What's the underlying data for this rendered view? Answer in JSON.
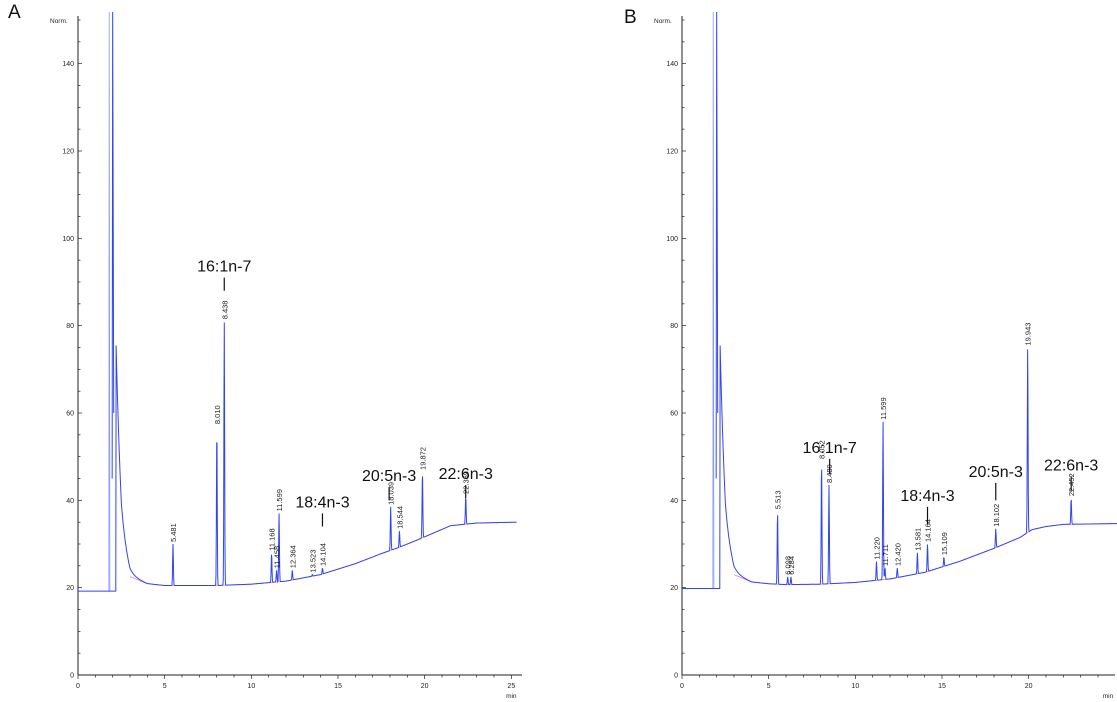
{
  "colors": {
    "trace": "#3344ee",
    "baseline": "#e060d0",
    "axis": "#222222"
  },
  "chart_data": [
    {
      "type": "line",
      "panel": "A",
      "ylabel": "Norm.",
      "xunit": "min",
      "xlim": [
        0,
        25.5
      ],
      "ylim": [
        0,
        150
      ],
      "xticks": [
        0,
        5,
        10,
        15,
        20,
        25
      ],
      "yticks": [
        0,
        20,
        40,
        60,
        80,
        100,
        120,
        140
      ],
      "baseline_start": 19.2,
      "solvent_peak_rt": 2.0,
      "baseline_points": [
        [
          0,
          19.2
        ],
        [
          1.75,
          19.2
        ],
        [
          2.2,
          42
        ],
        [
          2.5,
          28
        ],
        [
          3,
          22.5
        ],
        [
          4,
          20.9
        ],
        [
          5,
          20.5
        ],
        [
          6,
          20.5
        ],
        [
          8,
          20.5
        ],
        [
          10,
          20.8
        ],
        [
          12,
          21.5
        ],
        [
          14,
          23
        ],
        [
          16,
          25.5
        ],
        [
          17.5,
          27.8
        ],
        [
          18.5,
          29.2
        ],
        [
          19.5,
          30.8
        ],
        [
          20.5,
          32.5
        ],
        [
          21.5,
          34.2
        ],
        [
          23,
          34.8
        ],
        [
          25.3,
          35
        ]
      ],
      "peaks": [
        {
          "rt": 5.481,
          "label": "5.481",
          "height": 30
        },
        {
          "rt": 8.01,
          "label": "8.010",
          "height": 57
        },
        {
          "rt": 8.438,
          "label": "8.438",
          "height": 81
        },
        {
          "rt": 11.168,
          "label": "11.168",
          "height": 28
        },
        {
          "rt": 11.458,
          "label": "11.458",
          "height": 24
        },
        {
          "rt": 11.599,
          "label": "11.599",
          "height": 37
        },
        {
          "rt": 12.364,
          "label": "12.364",
          "height": 24
        },
        {
          "rt": 13.523,
          "label": "13.523",
          "height": 23
        },
        {
          "rt": 14.104,
          "label": "14.104",
          "height": 24.5
        },
        {
          "rt": 18.039,
          "label": "18.039",
          "height": 38.5
        },
        {
          "rt": 18.544,
          "label": "18.544",
          "height": 33
        },
        {
          "rt": 19.872,
          "label": "19.872",
          "height": 46.5
        },
        {
          "rt": 22.369,
          "label": "22.369",
          "height": 41
        }
      ],
      "annotations": [
        {
          "text": "16:1n-7",
          "rt": 8.438,
          "tick_top": 91,
          "tick_bottom": 88
        },
        {
          "text": "18:4n-3",
          "rt": 14.104,
          "tick_top": 37,
          "tick_bottom": 34
        },
        {
          "text": "20:5n-3",
          "rt": 17.95,
          "tick_top": 43,
          "tick_bottom": 40
        },
        {
          "text": "22:6n-3",
          "rt": 22.369,
          "tick_top": 43.5,
          "tick_bottom": 40.5
        }
      ]
    },
    {
      "type": "line",
      "panel": "B",
      "ylabel": "Norm.",
      "xunit": "min",
      "xlim": [
        0,
        25.5
      ],
      "ylim": [
        0,
        150
      ],
      "xticks": [
        0,
        5,
        10,
        15,
        20,
        25
      ],
      "yticks": [
        0,
        20,
        40,
        60,
        80,
        100,
        120,
        140
      ],
      "baseline_start": 19.8,
      "solvent_peak_rt": 2.0,
      "baseline_points": [
        [
          0,
          19.8
        ],
        [
          1.75,
          19.8
        ],
        [
          2.2,
          42
        ],
        [
          2.5,
          28
        ],
        [
          3,
          23
        ],
        [
          4,
          21.3
        ],
        [
          5,
          20.9
        ],
        [
          6,
          20.7
        ],
        [
          8,
          20.8
        ],
        [
          10,
          21.2
        ],
        [
          12,
          22
        ],
        [
          14,
          23.5
        ],
        [
          16,
          26
        ],
        [
          18,
          29
        ],
        [
          19.5,
          31.5
        ],
        [
          20.2,
          33.3
        ],
        [
          21,
          34
        ],
        [
          22,
          34.5
        ],
        [
          25.5,
          34.7
        ]
      ],
      "peaks": [
        {
          "rt": 5.513,
          "label": "5.513",
          "height": 37.5
        },
        {
          "rt": 6.098,
          "label": "6.098",
          "height": 22.5
        },
        {
          "rt": 6.284,
          "label": "6.284",
          "height": 22.5
        },
        {
          "rt": 8.052,
          "label": "8.052",
          "height": 49
        },
        {
          "rt": 8.48,
          "label": "8.480",
          "height": 43.5
        },
        {
          "rt": 11.22,
          "label": "11.220",
          "height": 26
        },
        {
          "rt": 11.599,
          "label": "11.599",
          "height": 58
        },
        {
          "rt": 11.711,
          "label": "11.711",
          "height": 24.5
        },
        {
          "rt": 12.42,
          "label": "12.420",
          "height": 24.5
        },
        {
          "rt": 13.581,
          "label": "13.581",
          "height": 28
        },
        {
          "rt": 14.164,
          "label": "14.164",
          "height": 30
        },
        {
          "rt": 15.109,
          "label": "15.109",
          "height": 27
        },
        {
          "rt": 18.102,
          "label": "18.102",
          "height": 33.5
        },
        {
          "rt": 19.943,
          "label": "19.943",
          "height": 75
        },
        {
          "rt": 22.452,
          "label": "22.452",
          "height": 40.5
        }
      ],
      "annotations": [
        {
          "text": "16:1n-7",
          "rt": 8.52,
          "tick_top": 49.5,
          "tick_bottom": 46
        },
        {
          "text": "18:4n-3",
          "rt": 14.164,
          "tick_top": 38.5,
          "tick_bottom": 34.5
        },
        {
          "text": "20:5n-3",
          "rt": 18.102,
          "tick_top": 44,
          "tick_bottom": 40
        },
        {
          "text": "22:6n-3",
          "rt": 22.452,
          "tick_top": 45.5,
          "tick_bottom": 42
        }
      ]
    }
  ]
}
